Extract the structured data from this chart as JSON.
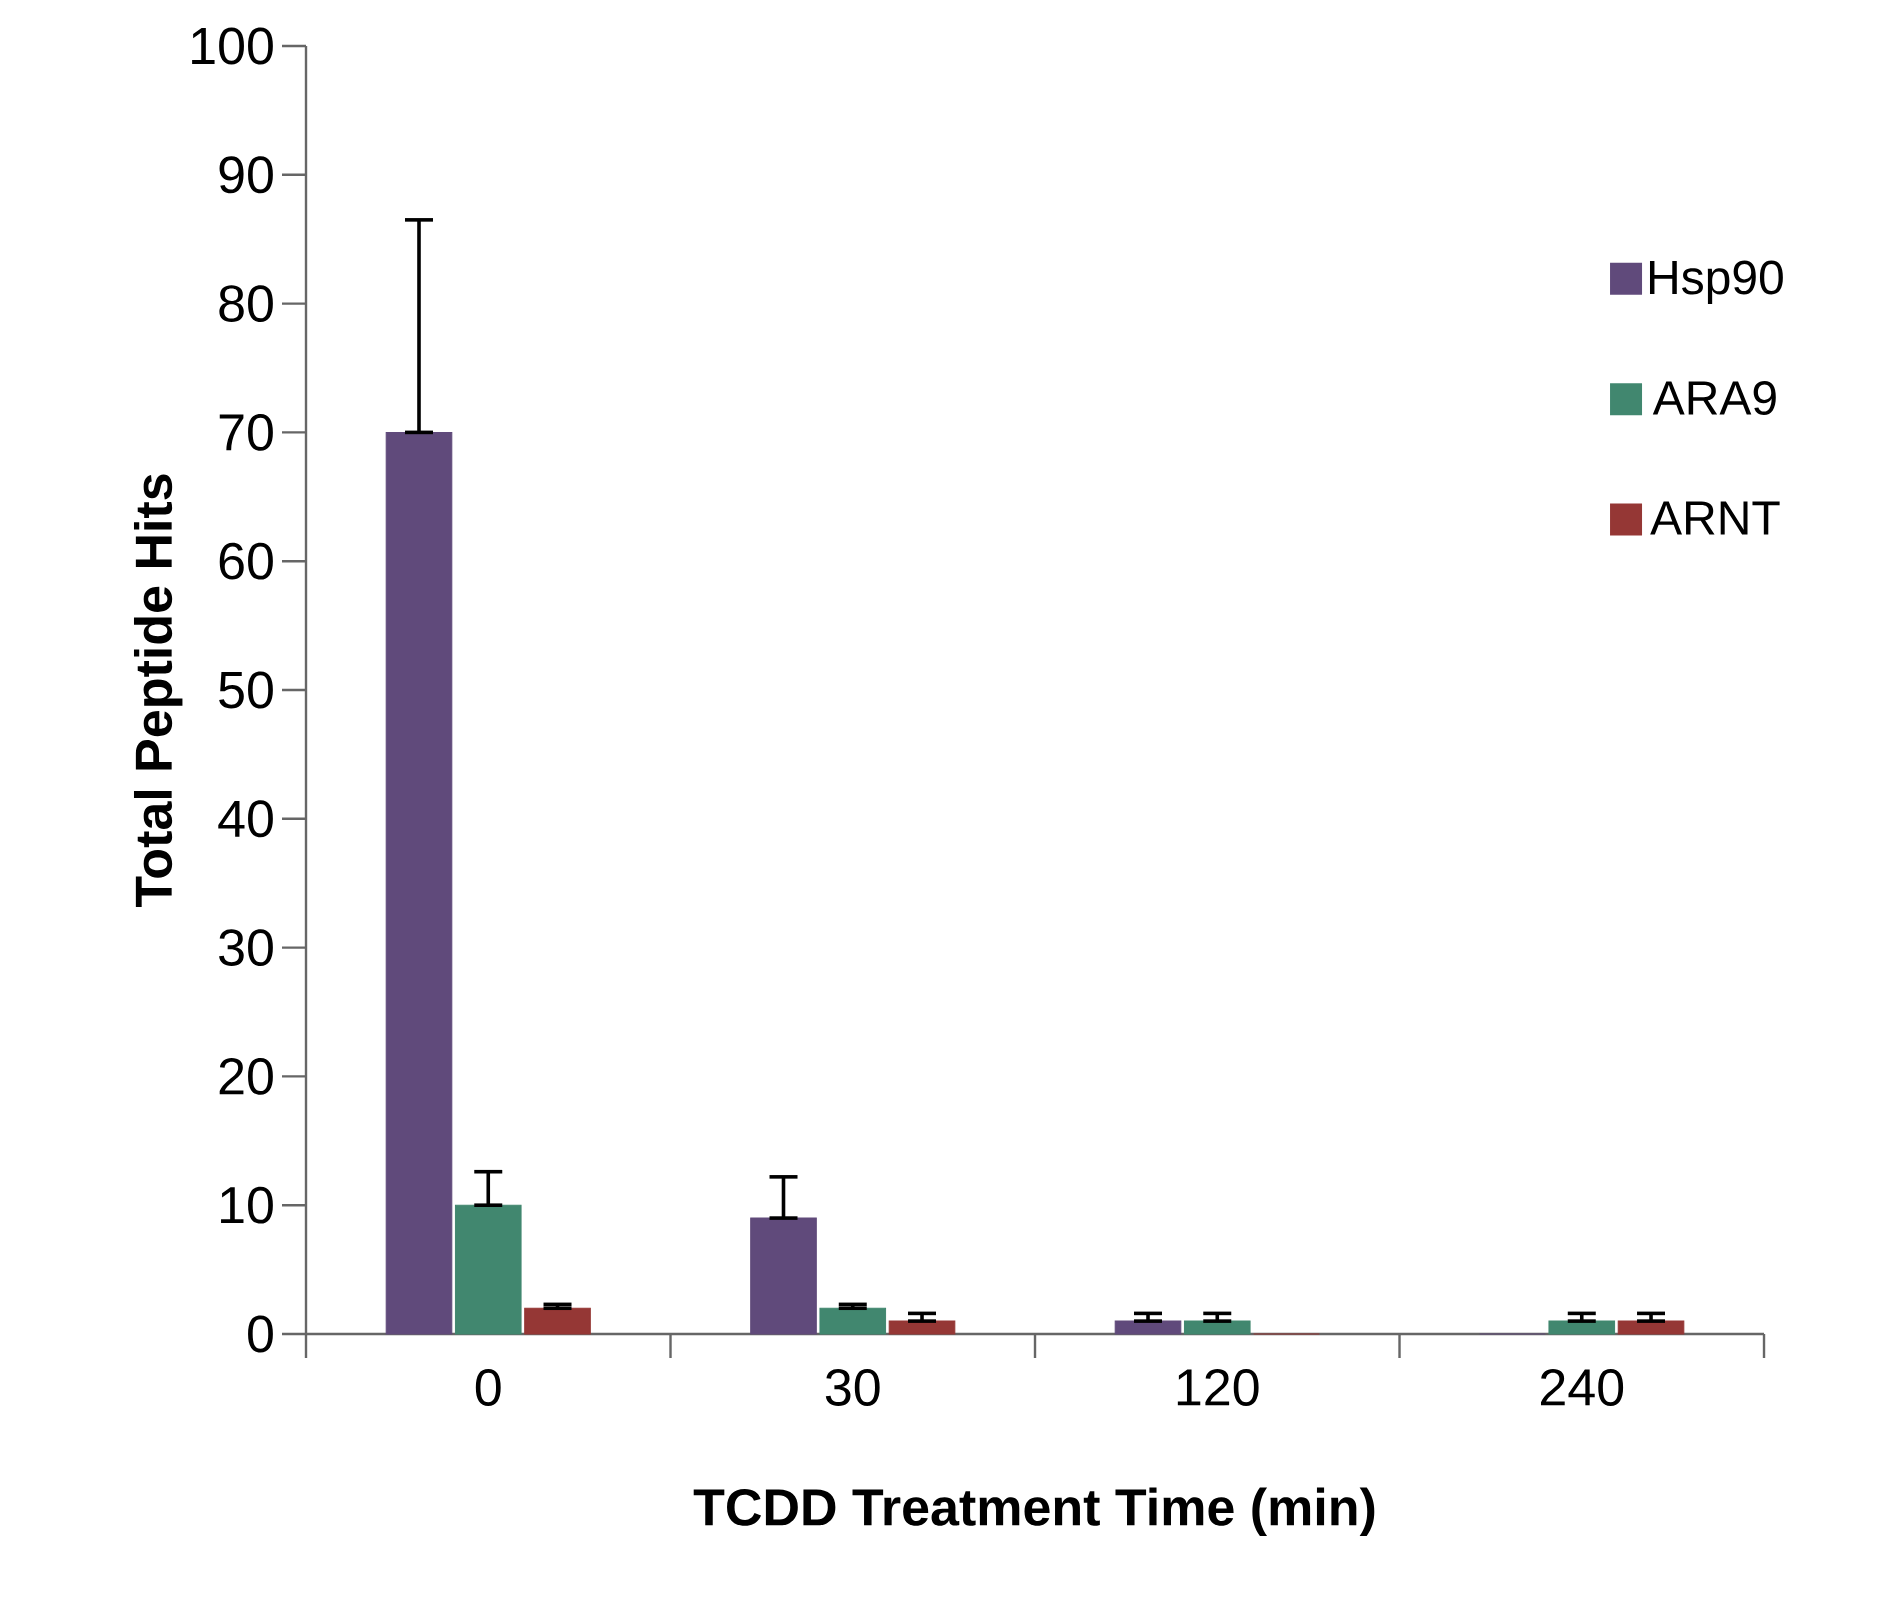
{
  "chart_data": {
    "type": "bar",
    "xlabel": "TCDD  Treatment  Time (min)",
    "ylabel": "Total Peptide Hits",
    "categories": [
      "0",
      "30",
      "120",
      "240"
    ],
    "series": [
      {
        "name": "Hsp90",
        "color": "#604a7b",
        "values": [
          70,
          9,
          1,
          0
        ],
        "errors": [
          [
            70,
            86.5
          ],
          [
            9,
            12.2
          ],
          [
            1,
            1.6
          ],
          null
        ]
      },
      {
        "name": "ARA9",
        "color": "#41876f",
        "values": [
          10,
          2,
          1,
          1
        ],
        "errors": [
          [
            10,
            12.6
          ],
          [
            2,
            2.3
          ],
          [
            1,
            1.6
          ],
          [
            1,
            1.6
          ]
        ]
      },
      {
        "name": "ARNT",
        "color": "#953735",
        "values": [
          2,
          1,
          0,
          1
        ],
        "errors": [
          [
            2,
            2.3
          ],
          [
            1,
            1.6
          ],
          null,
          [
            1,
            1.6
          ]
        ]
      }
    ],
    "ylim": [
      0,
      100
    ],
    "yticks": [
      0,
      10,
      20,
      30,
      40,
      50,
      60,
      70,
      80,
      90,
      100
    ],
    "grid": false,
    "legend": "right"
  }
}
